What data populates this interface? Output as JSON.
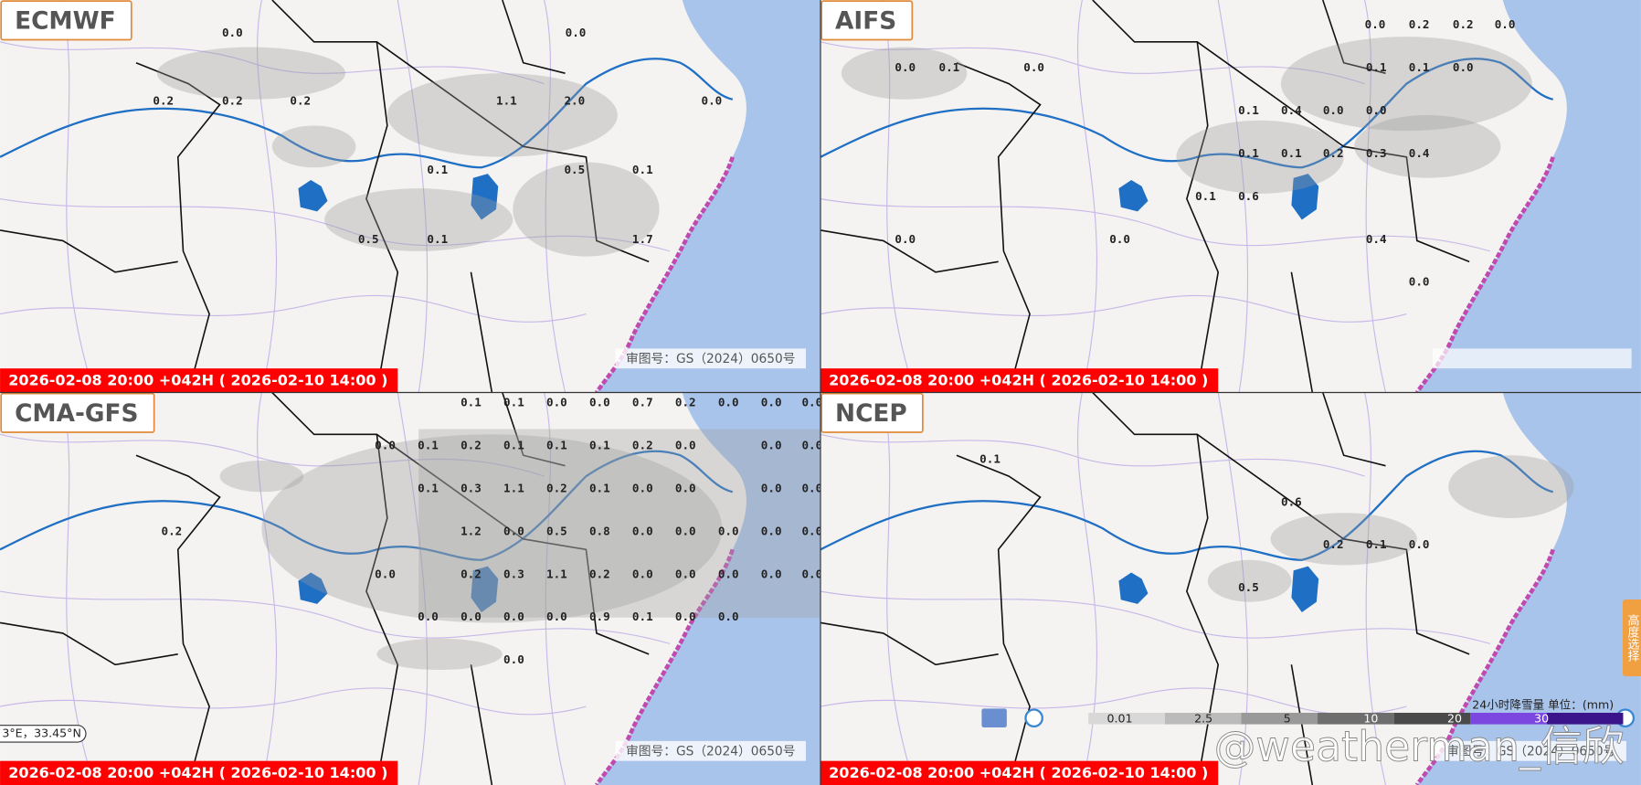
{
  "panels": [
    {
      "model": "ECMWF",
      "time": "2026-02-08 20:00 +042H ( 2026-02-10 14:00 )",
      "review": "审图号：GS（2024）0650号",
      "values": [
        "0.0",
        "0.0",
        "0.2",
        "0.2",
        "0.2",
        "1.1",
        "2.0",
        "0.0",
        "0.1",
        "0.5",
        "0.1",
        "0.5",
        "0.1",
        "1.7"
      ]
    },
    {
      "model": "AIFS",
      "time": "2026-02-08 20:00 +042H ( 2026-02-10 14:00 )",
      "values": [
        "0.0",
        "0.1",
        "0.0",
        "0.0",
        "0.2",
        "0.2",
        "0.0",
        "0.1",
        "0.1",
        "0.0",
        "0.1",
        "0.4",
        "0.0",
        "0.0",
        "0.1",
        "0.1",
        "0.2",
        "0.3",
        "0.4",
        "0.1",
        "0.6",
        "0.0",
        "0.0",
        "0.4",
        "0.0"
      ]
    },
    {
      "model": "CMA-GFS",
      "time": "2026-02-08 20:00 +042H ( 2026-02-10 14:00 )",
      "review": "审图号：GS（2024）0650号",
      "values": [
        "0.1",
        "0.1",
        "0.0",
        "0.0",
        "0.7",
        "0.2",
        "0.0",
        "0.0",
        "0.0",
        "0.0",
        "0.1",
        "0.2",
        "0.1",
        "0.1",
        "0.1",
        "0.2",
        "0.0",
        "0.0",
        "0.0",
        "0.1",
        "0.3",
        "1.1",
        "0.2",
        "0.1",
        "0.0",
        "0.0",
        "0.0",
        "0.0",
        "0.2",
        "1.2",
        "0.0",
        "0.5",
        "0.8",
        "0.0",
        "0.0",
        "0.0",
        "0.0",
        "0.0",
        "0.0",
        "0.2",
        "0.3",
        "1.1",
        "0.2",
        "0.0",
        "0.0",
        "0.0",
        "0.0",
        "0.0",
        "0.0",
        "0.0",
        "0.0",
        "0.0",
        "0.9",
        "0.1",
        "0.0",
        "0.0",
        "0.0"
      ]
    },
    {
      "model": "NCEP",
      "time": "2026-02-08 20:00 +042H ( 2026-02-10 14:00 )",
      "review": "审图号：GS（2024）0650号",
      "values": [
        "0.1",
        "0.6",
        "0.2",
        "0.1",
        "0.0",
        "0.5"
      ]
    }
  ],
  "coordinates": "3°E，33.45°N",
  "legend": {
    "title": "24小时降雪量 单位：(mm)",
    "ticks": [
      0.01,
      2.5,
      5,
      10,
      20,
      30
    ]
  },
  "watermark": "@weatherman_信欣",
  "side_button": "高度选择"
}
